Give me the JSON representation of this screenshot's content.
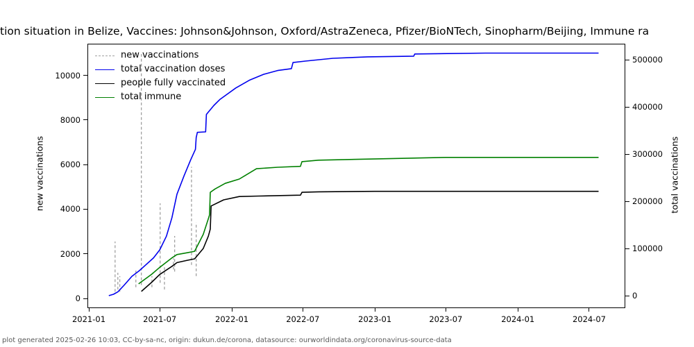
{
  "title": {
    "text": "tion situation in Belize, Vaccines: Johnson&Johnson, Oxford/AstraZeneca, Pfizer/BioNTech, Sinopharm/Beijing, Immune ra"
  },
  "footer": {
    "text": "plot generated 2025-02-26 10:03, CC-by-sa-nc, origin: dukun.de/corona, datasource: ourworldindata.org/coronavirus-source-data"
  },
  "chart_data": {
    "type": "line",
    "title": "tion situation in Belize, Vaccines: Johnson&Johnson, Oxford/AstraZeneca, Pfizer/BioNTech, Sinopharm/Beijing, Immune ra",
    "x_axis": {
      "tick_labels": [
        "2021-01",
        "2021-07",
        "2022-01",
        "2022-07",
        "2023-01",
        "2023-07",
        "2024-01",
        "2024-07"
      ]
    },
    "y_left": {
      "label": "new vaccinations",
      "ticks": [
        0,
        2000,
        4000,
        6000,
        8000,
        10000
      ],
      "range": [
        -550,
        11550
      ]
    },
    "y_right": {
      "label": "total vaccinations",
      "ticks": [
        0,
        100000,
        200000,
        300000,
        400000,
        500000
      ],
      "range": [
        -27000,
        535000
      ]
    },
    "legend": {
      "position": "upper-left",
      "frame": false
    },
    "colors": {
      "new_vaccinations": "#a0a0a0",
      "total_doses": "#0000ee",
      "fully_vaccinated": "#000000",
      "total_immune": "#008000"
    },
    "series": [
      {
        "name": "new vaccinations",
        "axis": "left",
        "color": "#a0a0a0",
        "style": "dashed",
        "type": "spikes",
        "spikes": [
          [
            "2021-03-09",
            300,
            2550
          ],
          [
            "2021-03-16",
            400,
            1150
          ],
          [
            "2021-03-21",
            300,
            1000
          ],
          [
            "2021-05-01",
            500,
            1250
          ],
          [
            "2021-05-15",
            600,
            10950
          ],
          [
            "2021-06-11",
            500,
            1000
          ],
          [
            "2021-07-02",
            700,
            4260
          ],
          [
            "2021-07-13",
            400,
            1400
          ],
          [
            "2021-08-05",
            1300,
            1800
          ],
          [
            "2021-08-08",
            1200,
            2800
          ],
          [
            "2021-09-20",
            1500,
            5900
          ],
          [
            "2021-10-02",
            1000,
            3400
          ]
        ]
      },
      {
        "name": "total vaccination doses",
        "axis": "right",
        "color": "#0000ee",
        "style": "solid",
        "type": "line",
        "points": [
          [
            "2021-02-21",
            0
          ],
          [
            "2021-03-05",
            3000
          ],
          [
            "2021-03-16",
            8000
          ],
          [
            "2021-04-01",
            22000
          ],
          [
            "2021-04-21",
            41000
          ],
          [
            "2021-05-10",
            53000
          ],
          [
            "2021-05-26",
            65000
          ],
          [
            "2021-06-15",
            80000
          ],
          [
            "2021-07-01",
            97000
          ],
          [
            "2021-07-18",
            126000
          ],
          [
            "2021-08-01",
            165000
          ],
          [
            "2021-08-14",
            215000
          ],
          [
            "2021-09-01",
            254000
          ],
          [
            "2021-09-18",
            288000
          ],
          [
            "2021-09-30",
            310000
          ],
          [
            "2021-10-02",
            335000
          ],
          [
            "2021-10-05",
            346000
          ],
          [
            "2021-10-26",
            347000
          ],
          [
            "2021-10-28",
            384000
          ],
          [
            "2021-11-16",
            403000
          ],
          [
            "2021-12-02",
            416000
          ],
          [
            "2022-01-11",
            440000
          ],
          [
            "2022-02-16",
            457000
          ],
          [
            "2022-03-23",
            469000
          ],
          [
            "2022-04-28",
            477000
          ],
          [
            "2022-06-02",
            481000
          ],
          [
            "2022-06-06",
            494000
          ],
          [
            "2022-07-08",
            497000
          ],
          [
            "2022-09-16",
            503000
          ],
          [
            "2022-12-14",
            506000
          ],
          [
            "2023-03-12",
            507000
          ],
          [
            "2023-04-10",
            507500
          ],
          [
            "2023-04-13",
            512000
          ],
          [
            "2023-10-10",
            514000
          ],
          [
            "2024-07-25",
            514000
          ]
        ]
      },
      {
        "name": "people fully vaccinated",
        "axis": "right",
        "color": "#000000",
        "style": "solid",
        "type": "line",
        "points": [
          [
            "2021-05-15",
            9000
          ],
          [
            "2021-06-10",
            28000
          ],
          [
            "2021-07-01",
            45000
          ],
          [
            "2021-08-01",
            62000
          ],
          [
            "2021-08-14",
            70000
          ],
          [
            "2021-09-10",
            75000
          ],
          [
            "2021-09-28",
            78000
          ],
          [
            "2021-10-20",
            100000
          ],
          [
            "2021-11-02",
            126000
          ],
          [
            "2021-11-07",
            141000
          ],
          [
            "2021-11-09",
            190000
          ],
          [
            "2021-12-11",
            203000
          ],
          [
            "2022-01-20",
            210000
          ],
          [
            "2022-03-10",
            211000
          ],
          [
            "2022-06-25",
            213000
          ],
          [
            "2022-06-29",
            219000
          ],
          [
            "2022-08-10",
            220000
          ],
          [
            "2023-01-01",
            221000
          ],
          [
            "2024-07-25",
            221000
          ]
        ]
      },
      {
        "name": "total immune",
        "axis": "right",
        "color": "#008000",
        "style": "solid",
        "type": "line",
        "points": [
          [
            "2021-05-08",
            25000
          ],
          [
            "2021-06-10",
            45000
          ],
          [
            "2021-07-01",
            60000
          ],
          [
            "2021-08-01",
            80000
          ],
          [
            "2021-08-14",
            87000
          ],
          [
            "2021-09-10",
            91000
          ],
          [
            "2021-09-28",
            94000
          ],
          [
            "2021-10-20",
            130000
          ],
          [
            "2021-11-02",
            163000
          ],
          [
            "2021-11-05",
            171000
          ],
          [
            "2021-11-07",
            219000
          ],
          [
            "2021-11-19",
            226000
          ],
          [
            "2021-12-15",
            238000
          ],
          [
            "2022-01-20",
            247000
          ],
          [
            "2022-03-05",
            269000
          ],
          [
            "2022-04-28",
            272000
          ],
          [
            "2022-06-25",
            274000
          ],
          [
            "2022-06-29",
            284000
          ],
          [
            "2022-08-10",
            287000
          ],
          [
            "2023-01-18",
            290000
          ],
          [
            "2023-07-01",
            293000
          ],
          [
            "2024-07-25",
            293000
          ]
        ]
      }
    ]
  }
}
